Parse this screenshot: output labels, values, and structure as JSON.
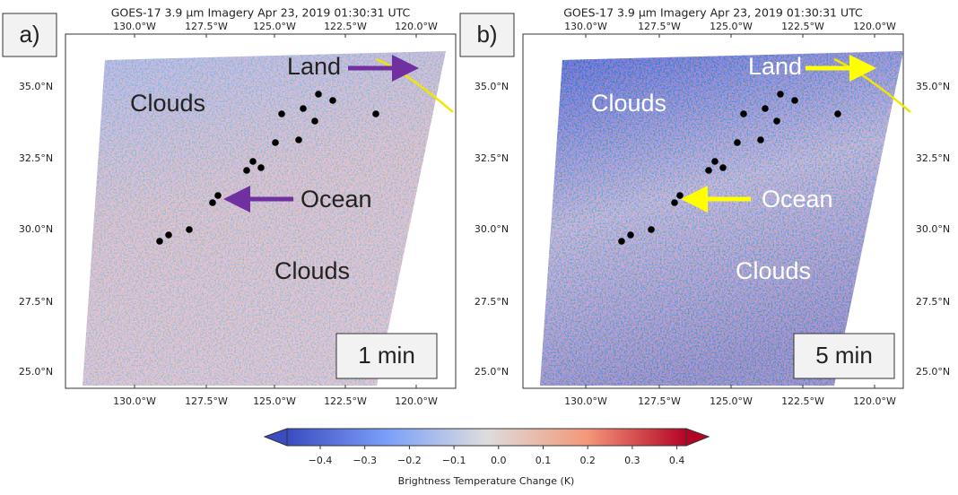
{
  "panels": [
    {
      "label": "a)",
      "title": "GOES-17 3.9 μm Imagery Apr 23, 2019 01:30:31 UTC",
      "lon_ticks": [
        "130.0°W",
        "127.5°W",
        "125.0°W",
        "122.5°W",
        "120.0°W"
      ],
      "lat_ticks": [
        "35.0°N",
        "32.5°N",
        "30.0°N",
        "27.5°N",
        "25.0°N"
      ],
      "annotations": [
        "Land",
        "Clouds",
        "Ocean",
        "Clouds"
      ],
      "duration": "1 min"
    },
    {
      "label": "b)",
      "title": "GOES-17 3.9 μm Imagery Apr 23, 2019 01:30:31 UTC",
      "lon_ticks": [
        "130.0°W",
        "127.5°W",
        "125.0°W",
        "122.5°W",
        "120.0°W"
      ],
      "lat_ticks": [
        "35.0°N",
        "32.5°N",
        "30.0°N",
        "27.5°N",
        "25.0°N"
      ],
      "annotations": [
        "Land",
        "Clouds",
        "Ocean",
        "Clouds"
      ],
      "duration": "5 min"
    }
  ],
  "colorbar": {
    "ticks": [
      "−0.4",
      "−0.3",
      "−0.2",
      "−0.1",
      "0.0",
      "0.1",
      "0.2",
      "0.3",
      "0.4"
    ],
    "label": "Brightness Temperature Change (K)"
  }
}
